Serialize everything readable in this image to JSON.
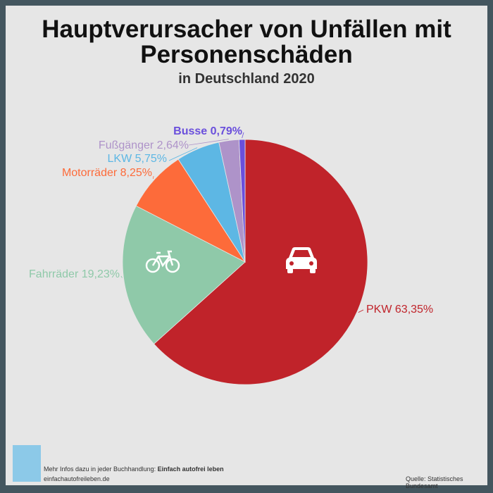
{
  "title": "Hauptverursacher von Unfällen mit Personenschäden",
  "title_line1": "Hauptverursacher von Unfällen mit",
  "title_line2": "Personenschäden",
  "subtitle": "in Deutschland 2020",
  "chart_data": {
    "type": "pie",
    "title": "Hauptverursacher von Unfällen mit Personenschäden",
    "subtitle": "in Deutschland 2020",
    "unit": "%",
    "start": "top, clockwise",
    "slices": [
      {
        "name": "PKW",
        "value": 63.35,
        "label": "PKW 63,35%",
        "color": "#c0232a",
        "icon": "car-icon"
      },
      {
        "name": "Fahrräder",
        "value": 19.23,
        "label": "Fahrräder 19,23%",
        "color": "#8fc9a9",
        "icon": "bicycle-icon"
      },
      {
        "name": "Motorräder",
        "value": 8.25,
        "label": "Motorräder 8,25%",
        "color": "#fd6b3a"
      },
      {
        "name": "LKW",
        "value": 5.75,
        "label": "LKW 5,75%",
        "color": "#5db7e4"
      },
      {
        "name": "Fußgänger",
        "value": 2.64,
        "label": "Fußgänger 2,64%",
        "color": "#ae93c9"
      },
      {
        "name": "Busse",
        "value": 0.79,
        "label": "Busse 0,79%",
        "color": "#6a4fdc"
      }
    ]
  },
  "footer": {
    "info_prefix": "Mehr Infos dazu in jeder Buchhandlung: ",
    "info_book": "Einfach autofrei leben",
    "website": "einfachautofreileben.de",
    "source": "Quelle: Statistisches Bundesamt"
  }
}
